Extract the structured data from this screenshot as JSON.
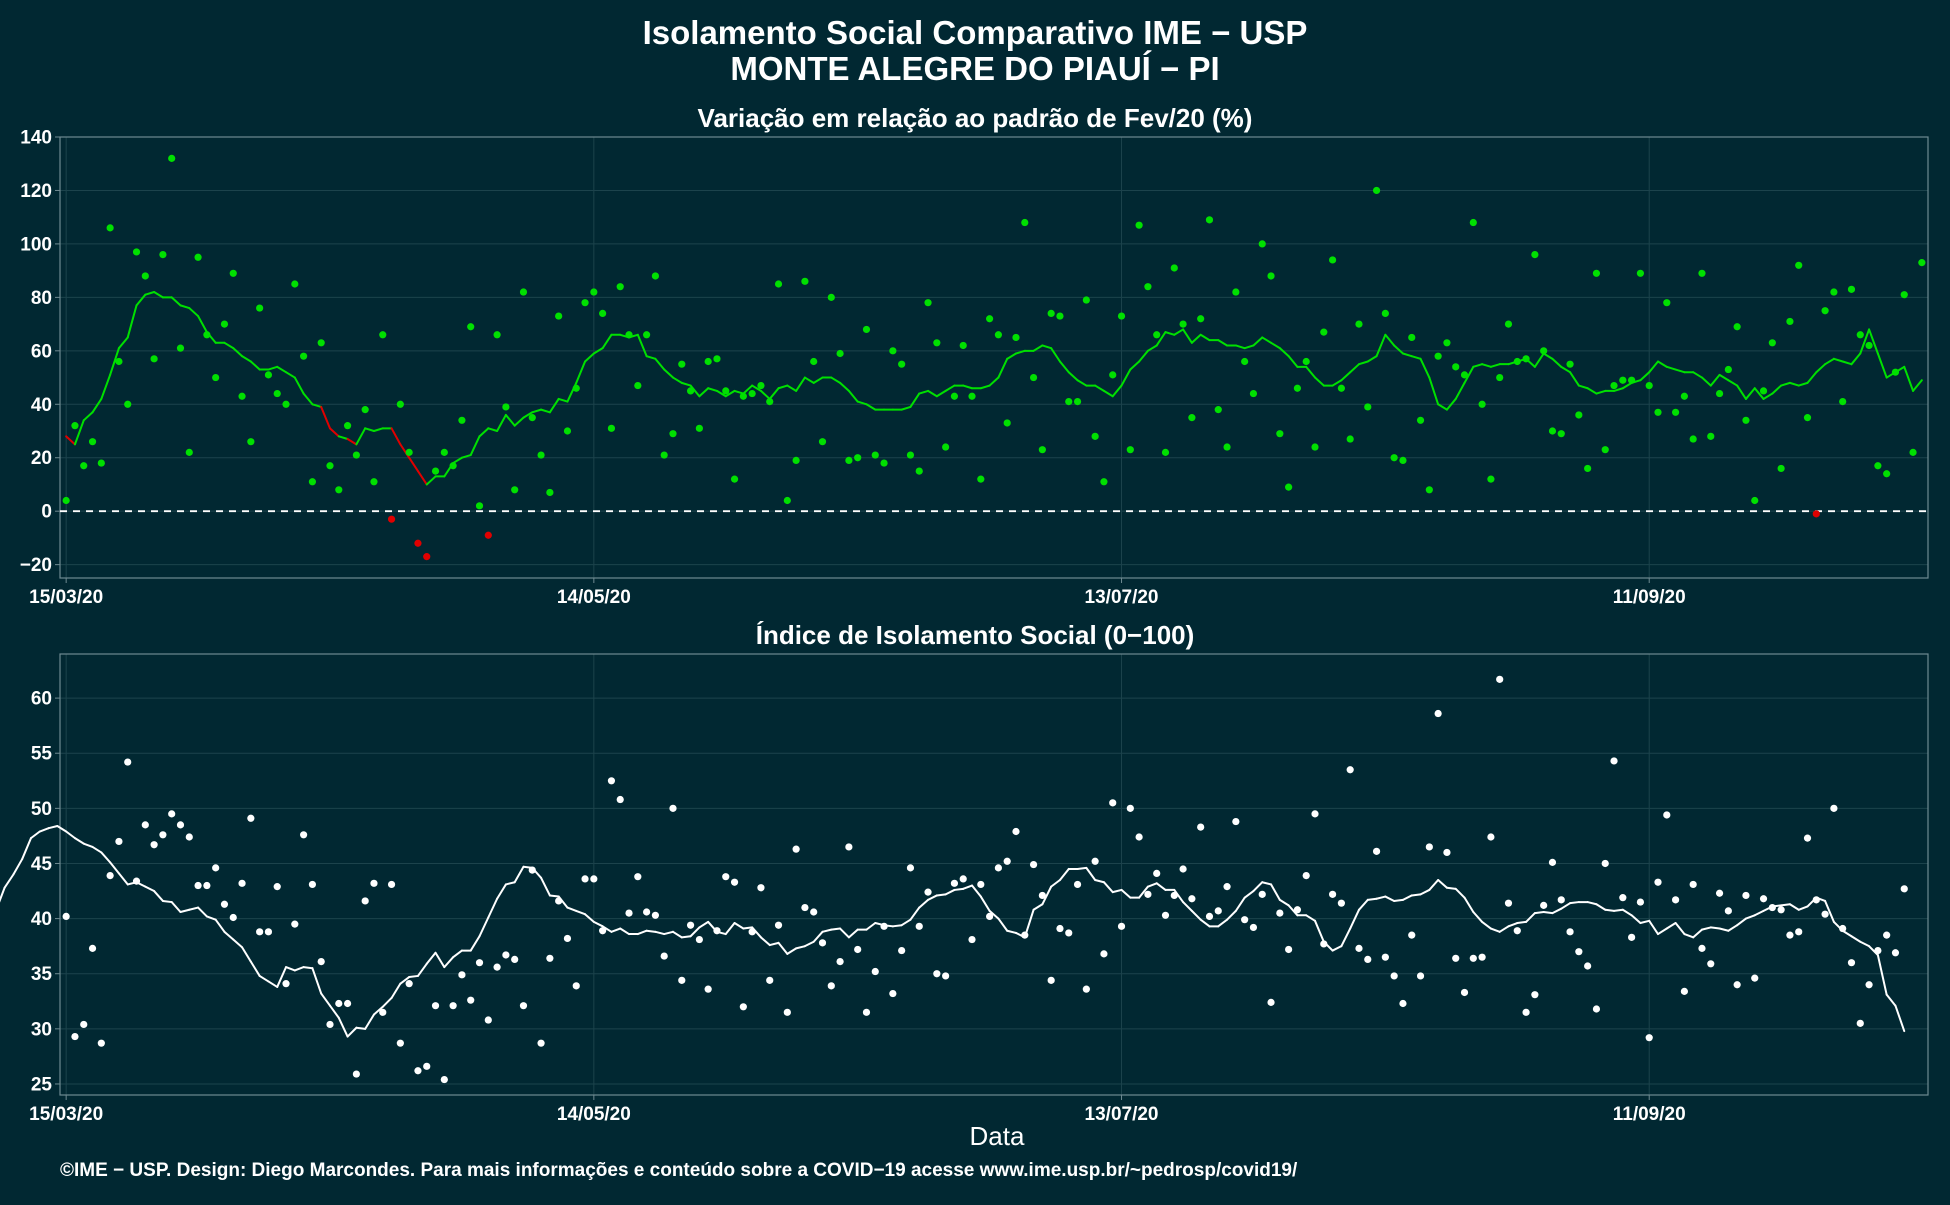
{
  "title": {
    "line1": "Isolamento Social Comparativo IME − USP",
    "line2": "MONTE ALEGRE DO PIAUÍ − PI"
  },
  "footer": "©IME − USP. Design: Diego Marcondes. Para mais informações e conteúdo sobre a COVID−19 acesse www.ime.usp.br/~pedrosp/covid19/",
  "x_axis_title": "Data",
  "colors": {
    "background": "#012832",
    "panel_border": "#6f8a91",
    "grid": "#1c434c",
    "positive": "#00e000",
    "negative": "#e00000",
    "index": "#ffffff"
  },
  "chart_data": [
    {
      "type": "scatter",
      "title": "Variação em relação ao padrão de Fev/20 (%)",
      "x_start": "15/03/20",
      "x_end": "12/10/20",
      "x_ticks": [
        "15/03/20",
        "14/05/20",
        "13/07/20",
        "11/09/20"
      ],
      "ylim": [
        -25,
        140
      ],
      "y_ticks": [
        -20,
        0,
        20,
        40,
        60,
        80,
        100,
        120,
        140
      ],
      "reference_line": 0,
      "grid": true,
      "series": [
        {
          "role": "daily points",
          "values": [
            4,
            32,
            17,
            26,
            18,
            106,
            56,
            40,
            97,
            88,
            57,
            96,
            132,
            61,
            22,
            95,
            66,
            50,
            70,
            89,
            43,
            26,
            76,
            51,
            44,
            40,
            85,
            58,
            11,
            63,
            17,
            8,
            32,
            21,
            38,
            11,
            66,
            -3,
            40,
            22,
            -12,
            -17,
            15,
            22,
            17,
            34,
            69,
            2,
            -9,
            66,
            39,
            8,
            82,
            35,
            21,
            7,
            73,
            30,
            46,
            78,
            82,
            74,
            31,
            84,
            66,
            47,
            66,
            88,
            21,
            29,
            55,
            45,
            31,
            56,
            57,
            45,
            12,
            43,
            44,
            47,
            41,
            85,
            4,
            19,
            86,
            56,
            26,
            80,
            59,
            19,
            20,
            68,
            21,
            18,
            60,
            55,
            21,
            15,
            78,
            63,
            24,
            43,
            62,
            43,
            12,
            72,
            66,
            33,
            65,
            108,
            50,
            23,
            74,
            73,
            41,
            41,
            79,
            28,
            11,
            51,
            73,
            23,
            107,
            84,
            66,
            22,
            91,
            70,
            35,
            72,
            109,
            38,
            24,
            82,
            56,
            44,
            100,
            88,
            29,
            9,
            46,
            56,
            24,
            67,
            94,
            46,
            27,
            70,
            39,
            120,
            74,
            20,
            19,
            65,
            34,
            8,
            58,
            63,
            54,
            51,
            108,
            40,
            12,
            50,
            70,
            56,
            57,
            96,
            60,
            30,
            29,
            55,
            36,
            16,
            89,
            23,
            47,
            49,
            49,
            89,
            47,
            37,
            78,
            37,
            43,
            27,
            89,
            28,
            44,
            53,
            69,
            34,
            4,
            45,
            63,
            16,
            71,
            92,
            35,
            -1,
            75,
            82,
            41,
            83,
            66,
            62,
            17,
            14,
            52,
            81,
            22,
            93
          ],
          "moving_average": [
            28,
            25,
            34,
            37,
            42,
            51,
            61,
            65,
            77,
            81,
            82,
            80,
            80,
            77,
            76,
            73,
            67,
            63,
            63,
            61,
            58,
            56,
            53,
            53,
            54,
            52,
            50,
            44,
            40,
            39,
            31,
            28,
            27,
            25,
            31,
            30,
            31,
            31,
            25,
            20,
            15,
            10,
            13,
            13,
            18,
            20,
            21,
            28,
            31,
            30,
            36,
            32,
            35,
            37,
            38,
            37,
            42,
            41,
            48,
            56,
            59,
            61,
            66,
            66,
            65,
            66,
            58,
            57,
            53,
            50,
            48,
            47,
            43,
            46,
            45,
            43,
            45,
            44,
            47,
            45,
            42,
            46,
            47,
            45,
            50,
            48,
            50,
            50,
            48,
            45,
            41,
            40,
            38,
            38,
            38,
            38,
            39,
            44,
            45,
            43,
            45,
            47,
            47,
            46,
            46,
            47,
            50,
            57,
            59,
            60,
            60,
            62,
            61,
            56,
            52,
            49,
            47,
            47,
            45,
            43,
            47,
            53,
            56,
            60,
            62,
            67,
            66,
            68,
            63,
            66,
            64,
            64,
            62,
            62,
            61,
            62,
            65,
            63,
            61,
            58,
            54,
            54,
            50,
            47,
            47,
            49,
            52,
            55,
            56,
            58,
            66,
            62,
            59,
            58,
            57,
            50,
            40,
            38,
            42,
            48,
            54,
            55,
            54,
            55,
            55,
            56,
            57,
            54,
            59,
            57,
            54,
            52,
            47,
            46,
            44,
            45,
            45,
            46,
            48,
            49,
            52,
            56,
            54,
            53,
            52,
            52,
            50,
            47,
            51,
            49,
            47,
            42,
            46,
            42,
            44,
            47,
            48,
            47,
            48,
            52,
            55,
            57,
            56,
            55,
            59,
            68,
            59,
            50,
            52,
            54,
            45,
            49
          ]
        }
      ]
    },
    {
      "type": "scatter",
      "title": "Índice de Isolamento Social (0−100)",
      "x_start": "15/03/20",
      "x_end": "12/10/20",
      "x_ticks": [
        "15/03/20",
        "14/05/20",
        "13/07/20",
        "11/09/20"
      ],
      "xlabel": "Data",
      "ylim": [
        24,
        64
      ],
      "y_ticks": [
        25,
        30,
        35,
        40,
        45,
        50,
        55,
        60
      ],
      "grid": true,
      "series": [
        {
          "role": "daily points",
          "values": [
            40.2,
            29.3,
            30.4,
            37.3,
            28.7,
            43.9,
            47,
            54.2,
            43.4,
            48.5,
            46.7,
            47.6,
            49.5,
            48.5,
            47.4,
            43,
            43,
            44.6,
            41.3,
            40.1,
            43.2,
            49.1,
            38.8,
            38.8,
            42.9,
            34.1,
            39.5,
            47.6,
            43.1,
            36.1,
            30.4,
            32.3,
            32.3,
            25.9,
            41.6,
            43.2,
            31.5,
            43.1,
            28.7,
            34.1,
            26.2,
            26.6,
            32.1,
            25.4,
            32.1,
            34.9,
            32.6,
            36,
            30.8,
            35.6,
            36.7,
            36.3,
            32.1,
            44.4,
            28.7,
            36.4,
            41.6,
            38.2,
            33.9,
            43.6,
            43.6,
            38.9,
            52.5,
            50.8,
            40.5,
            43.8,
            40.6,
            40.3,
            36.6,
            50,
            34.4,
            39.4,
            38.1,
            33.6,
            38.9,
            43.8,
            43.3,
            32,
            38.8,
            42.8,
            34.4,
            39.4,
            31.5,
            46.3,
            41,
            40.6,
            37.8,
            33.9,
            36.1,
            46.5,
            37.2,
            31.5,
            35.2,
            39.3,
            33.2,
            37.1,
            44.6,
            39.3,
            42.4,
            35,
            34.8,
            43.2,
            43.6,
            38.1,
            43.1,
            40.2,
            44.6,
            45.2,
            47.9,
            38.5,
            44.9,
            42.1,
            34.4,
            39.1,
            38.7,
            43.1,
            33.6,
            45.2,
            36.8,
            50.5,
            39.3,
            50,
            47.4,
            42.2,
            44.1,
            40.3,
            42.1,
            44.5,
            41.8,
            48.3,
            40.2,
            40.7,
            42.9,
            48.8,
            39.9,
            39.2,
            42.2,
            32.4,
            40.5,
            37.2,
            40.8,
            43.9,
            49.5,
            37.7,
            42.2,
            41.4,
            53.5,
            37.3,
            36.3,
            46.1,
            36.5,
            34.8,
            32.3,
            38.5,
            34.8,
            46.5,
            58.6,
            46,
            36.4,
            33.3,
            36.4,
            36.5,
            47.4,
            61.7,
            41.4,
            38.9,
            31.5,
            33.1,
            41.2,
            45.1,
            41.7,
            38.8,
            37,
            35.7,
            31.8,
            45,
            54.3,
            41.9,
            38.3,
            41.5,
            29.2,
            43.3,
            49.4,
            41.7,
            33.4,
            43.1,
            37.3,
            35.9,
            42.3,
            40.7,
            34,
            42.1,
            34.6,
            41.8,
            41,
            40.8,
            38.5,
            38.8,
            47.3,
            41.7,
            40.4,
            50,
            39.1,
            36,
            30.5,
            34,
            37.1,
            38.5,
            36.9,
            42.7
          ],
          "moving_average": [
            37,
            38.9,
            40.7,
            42.8,
            44,
            45.4,
            47.3,
            47.9,
            48.2,
            48.4,
            47.9,
            47.3,
            46.8,
            46.5,
            46,
            45.1,
            44.1,
            43.1,
            43.3,
            42.9,
            42.5,
            41.6,
            41.5,
            40.6,
            40.8,
            41,
            40.2,
            39.9,
            38.8,
            38.1,
            37.4,
            36.1,
            34.8,
            34.3,
            33.8,
            35.6,
            35.3,
            35.6,
            35.5,
            33.2,
            32.1,
            31,
            29.3,
            30.1,
            30,
            31.3,
            32,
            32.8,
            34.1,
            34.7,
            34.8,
            35.9,
            36.9,
            35.6,
            36.5,
            37.1,
            37.1,
            38.4,
            40.1,
            41.8,
            43.1,
            43.3,
            44.7,
            44.6,
            43.7,
            42.1,
            42,
            41,
            40.7,
            40.4,
            39.7,
            39.3,
            38.8,
            39.1,
            38.6,
            38.6,
            38.9,
            38.8,
            38.6,
            38.8,
            38.3,
            38.4,
            39.2,
            39.7,
            38.8,
            38.6,
            39.6,
            39.1,
            39.2,
            38.3,
            37.6,
            37.8,
            36.8,
            37.3,
            37.5,
            37.9,
            38.8,
            39,
            39.1,
            38.3,
            39,
            39,
            39.6,
            39.4,
            39.3,
            39.4,
            39.9,
            41,
            41.7,
            42.1,
            42.2,
            42.6,
            42.7,
            43,
            42,
            40.7,
            40,
            38.9,
            38.7,
            38.3,
            40.8,
            41.3,
            42.9,
            43.5,
            44.5,
            44.5,
            44.6,
            43.5,
            43.3,
            42.4,
            42.6,
            41.9,
            41.9,
            42.9,
            43.2,
            42.6,
            42.6,
            41.5,
            40.7,
            39.9,
            39.3,
            39.3,
            39.9,
            40.7,
            41.9,
            42.5,
            43.3,
            43.1,
            41.7,
            41.2,
            40.3,
            40.3,
            39.8,
            37.9,
            37.1,
            37.5,
            39.1,
            40.8,
            41.7,
            41.8,
            42,
            41.6,
            41.7,
            42.1,
            42.2,
            42.6,
            43.5,
            42.8,
            42.7,
            41.9,
            40.6,
            39.7,
            39.1,
            38.8,
            39.3,
            39.6,
            39.7,
            40.5,
            40.6,
            40.5,
            40.9,
            41.4,
            41.5,
            41.5,
            41.3,
            40.8,
            40.7,
            40.8,
            40.3,
            39.6,
            39.8,
            38.6,
            39.1,
            39.6,
            38.6,
            38.3,
            39,
            39.2,
            39.1,
            38.9,
            39.4,
            40,
            40.3,
            40.7,
            41.1,
            41.2,
            41.3,
            40.8,
            41.1,
            41.9,
            41.6,
            39.7,
            38.9,
            38.4,
            37.9,
            37.5,
            36.7,
            33.1,
            32.1,
            29.8
          ]
        }
      ]
    }
  ]
}
